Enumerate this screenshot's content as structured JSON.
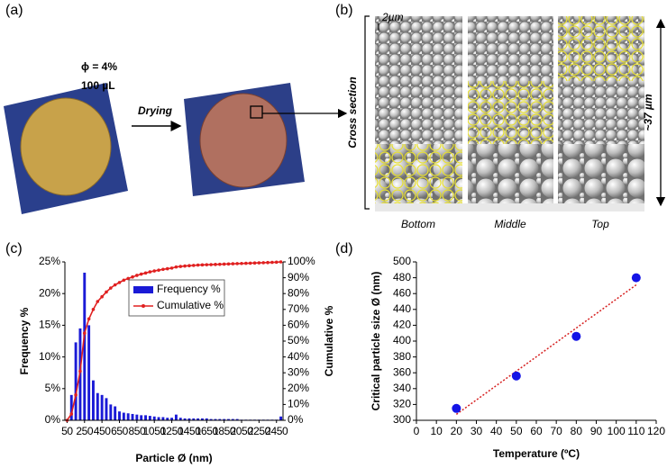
{
  "figure": {
    "panels": [
      "(a)",
      "(b)",
      "(c)",
      "(d)"
    ],
    "a": {
      "concentration": "ϕ = 4%",
      "volume": "100 µL",
      "arrow": "Drying"
    },
    "b": {
      "section": "Cross section",
      "scale_bar": "2µm",
      "thickness": "~37 µm",
      "layers": [
        "Bottom",
        "Middle",
        "Top"
      ]
    }
  },
  "chart_data": [
    {
      "type": "bar",
      "xlabel": "Particle Ø (nm)",
      "ylabel": "Frequency %",
      "y2label": "Cumulative %",
      "categories": [
        "50",
        null,
        null,
        null,
        "250",
        null,
        null,
        null,
        "450",
        null,
        null,
        null,
        "650",
        null,
        null,
        null,
        "850",
        null,
        null,
        null,
        "1050",
        null,
        null,
        null,
        "1250",
        null,
        null,
        null,
        "1450",
        null,
        null,
        null,
        "1650",
        null,
        null,
        null,
        "1850",
        null,
        null,
        null,
        "2050",
        null,
        null,
        null,
        "2250",
        null,
        null,
        null,
        "2450",
        null
      ],
      "series": [
        {
          "name": "Frequency %",
          "color": "#1a1ad6",
          "values": [
            0,
            4,
            12.3,
            14.5,
            23.3,
            15,
            6.3,
            4.3,
            4,
            3.5,
            2.5,
            2.2,
            1.4,
            1.2,
            1.1,
            1,
            0.9,
            0.8,
            0.8,
            0.7,
            0.6,
            0.5,
            0.5,
            0.4,
            0.4,
            0.9,
            0.4,
            0.3,
            0.3,
            0.3,
            0.3,
            0.3,
            0.3,
            0.2,
            0.2,
            0.2,
            0.2,
            0.2,
            0.2,
            0.2,
            0.1,
            0.1,
            0.1,
            0.1,
            0.1,
            0.1,
            0.1,
            0.1,
            0.1,
            0.6
          ]
        },
        {
          "name": "Cumulative %",
          "color": "#e02020",
          "type": "line",
          "axis": "y2",
          "values": [
            0,
            4,
            16,
            31,
            55,
            64,
            70,
            75,
            78,
            81,
            83.5,
            85.5,
            87,
            88.5,
            89.5,
            90.5,
            91.5,
            92.3,
            93,
            93.7,
            94.3,
            94.8,
            95.3,
            95.7,
            96.1,
            96.8,
            97.1,
            97.4,
            97.6,
            97.8,
            98,
            98.1,
            98.2,
            98.3,
            98.4,
            98.5,
            98.6,
            98.7,
            98.8,
            98.9,
            99,
            99.1,
            99.2,
            99.3,
            99.4,
            99.5,
            99.6,
            99.7,
            99.8,
            100
          ]
        }
      ],
      "ylim": [
        0,
        25
      ],
      "yticks": [
        {
          "value": 0,
          "label": "0%"
        },
        {
          "value": 5,
          "label": "5%"
        },
        {
          "value": 10,
          "label": "10%"
        },
        {
          "value": 15,
          "label": "15%"
        },
        {
          "value": 20,
          "label": "20%"
        },
        {
          "value": 25,
          "label": "25%"
        }
      ],
      "y2lim": [
        0,
        100
      ],
      "y2ticks": [
        {
          "value": 0,
          "label": "0%"
        },
        {
          "value": 10,
          "label": "10%"
        },
        {
          "value": 20,
          "label": "20%"
        },
        {
          "value": 30,
          "label": "30%"
        },
        {
          "value": 40,
          "label": "40%"
        },
        {
          "value": 50,
          "label": "50%"
        },
        {
          "value": 60,
          "label": "60%"
        },
        {
          "value": 70,
          "label": "70%"
        },
        {
          "value": 80,
          "label": "80%"
        },
        {
          "value": 90,
          "label": "90%"
        },
        {
          "value": 100,
          "label": "100%"
        }
      ],
      "legend": "upper center",
      "grid": false
    },
    {
      "type": "scatter",
      "xlabel": "Temperature (ºC)",
      "ylabel": "Critical particle size Ø (nm)",
      "x": [
        20,
        50,
        80,
        110
      ],
      "values": [
        315,
        356,
        406,
        480
      ],
      "color": "#1414e6",
      "trendline": true,
      "trendline_color": "#d62020",
      "xlim": [
        0,
        120
      ],
      "xticks": [
        0,
        10,
        20,
        30,
        40,
        50,
        60,
        70,
        80,
        90,
        100,
        110,
        120
      ],
      "ylim": [
        300,
        500
      ],
      "yticks": [
        300,
        320,
        340,
        360,
        380,
        400,
        420,
        440,
        460,
        480,
        500
      ],
      "grid": false
    }
  ]
}
